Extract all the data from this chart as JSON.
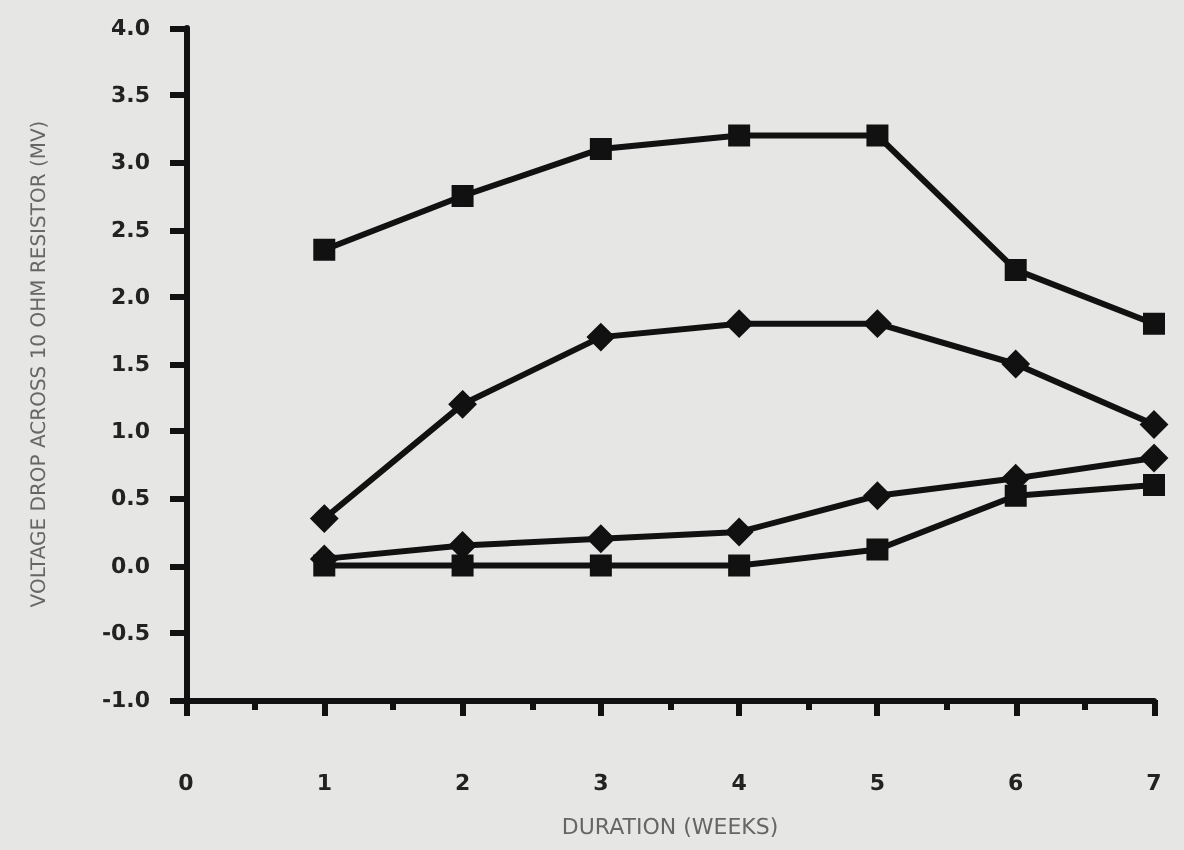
{
  "chart_data": {
    "type": "line",
    "xlabel": "DURATION (WEEKS)",
    "ylabel": "VOLTAGE DROP ACROSS 10 OHM RESISTOR (MV)",
    "x": [
      1,
      2,
      3,
      4,
      5,
      6,
      7
    ],
    "series": [
      {
        "color": "#111111",
        "marker": "square",
        "values": [
          2.35,
          2.75,
          3.1,
          3.2,
          3.2,
          2.2,
          1.8
        ]
      },
      {
        "color": "#111111",
        "marker": "diamond",
        "values": [
          0.35,
          1.2,
          1.7,
          1.8,
          1.8,
          1.5,
          1.05
        ]
      },
      {
        "color": "#111111",
        "marker": "diamond",
        "values": [
          0.05,
          0.15,
          0.2,
          0.25,
          0.52,
          0.65,
          0.8
        ]
      },
      {
        "color": "#111111",
        "marker": "square",
        "values": [
          0,
          0,
          0,
          0,
          0.12,
          0.52,
          0.6
        ]
      }
    ],
    "xlim": [
      0,
      7
    ],
    "xticks": [
      0,
      1,
      2,
      3,
      4,
      5,
      6,
      7
    ],
    "ylim": [
      -1,
      4
    ],
    "yticks": [
      {
        "value": -1,
        "label": "-1.0"
      },
      {
        "value": -0.5,
        "label": "-0.5"
      },
      {
        "value": 0,
        "label": "0.0"
      },
      {
        "value": 0.5,
        "label": "0.5"
      },
      {
        "value": 1,
        "label": "1.0"
      },
      {
        "value": 1.5,
        "label": "1.5"
      },
      {
        "value": 2,
        "label": "2.0"
      },
      {
        "value": 2.5,
        "label": "2.5"
      },
      {
        "value": 3,
        "label": "3.0"
      },
      {
        "value": 3.5,
        "label": "3.5"
      },
      {
        "value": 4,
        "label": "4.0"
      }
    ],
    "line_style": "solid"
  }
}
